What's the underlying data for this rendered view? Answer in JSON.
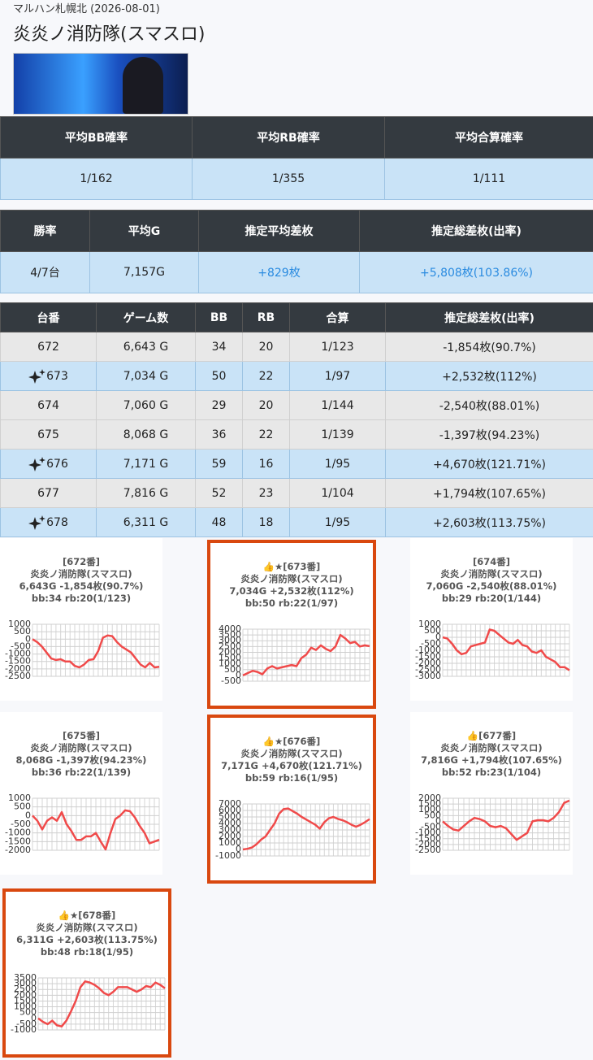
{
  "header": {
    "store": "マルハン札幌北 (2026-08-01)",
    "title": "炎炎ノ消防隊(スマスロ)"
  },
  "summary1": {
    "headers": [
      "平均BB確率",
      "平均RB確率",
      "平均合算確率"
    ],
    "row": [
      "1/162",
      "1/355",
      "1/111"
    ]
  },
  "summary2": {
    "headers": [
      "勝率",
      "平均G",
      "推定平均差枚",
      "推定総差枚(出率)"
    ],
    "row": [
      "4/7台",
      "7,157G",
      "+829枚",
      "+5,808枚(103.86%)"
    ]
  },
  "machines": {
    "headers": [
      "台番",
      "ゲーム数",
      "BB",
      "RB",
      "合算",
      "推定総差枚(出率)"
    ],
    "rows": [
      {
        "cells": [
          "672",
          "6,643 G",
          "34",
          "20",
          "1/123",
          "-1,854枚(90.7%)"
        ],
        "highlight": false
      },
      {
        "cells": [
          "673",
          "7,034 G",
          "50",
          "22",
          "1/97",
          "+2,532枚(112%)"
        ],
        "highlight": true
      },
      {
        "cells": [
          "674",
          "7,060 G",
          "29",
          "20",
          "1/144",
          "-2,540枚(88.01%)"
        ],
        "highlight": false
      },
      {
        "cells": [
          "675",
          "8,068 G",
          "36",
          "22",
          "1/139",
          "-1,397枚(94.23%)"
        ],
        "highlight": false
      },
      {
        "cells": [
          "676",
          "7,171 G",
          "59",
          "16",
          "1/95",
          "+4,670枚(121.71%)"
        ],
        "highlight": true
      },
      {
        "cells": [
          "677",
          "7,816 G",
          "52",
          "23",
          "1/104",
          "+1,794枚(107.65%)"
        ],
        "highlight": false
      },
      {
        "cells": [
          "678",
          "6,311 G",
          "48",
          "18",
          "1/95",
          "+2,603枚(113.75%)"
        ],
        "highlight": true
      }
    ]
  },
  "chart_data": [
    {
      "type": "line",
      "highlight": false,
      "color": "#f04a4a",
      "title_lines": [
        "[672番]",
        "炎炎ノ消防隊(スマスロ)",
        "6,643G -1,854枚(90.7%)",
        "bb:34 rb:20(1/123)"
      ],
      "ylim": [
        -2500,
        1000
      ],
      "yticks": [
        1000,
        500,
        0,
        -500,
        -1000,
        -1500,
        -2000,
        -2500
      ],
      "values": [
        0,
        -200,
        -500,
        -900,
        -1300,
        -1400,
        -1350,
        -1500,
        -1500,
        -1800,
        -1900,
        -1700,
        -1400,
        -1350,
        -800,
        100,
        250,
        200,
        -200,
        -500,
        -700,
        -900,
        -1300,
        -1700,
        -1900,
        -1600,
        -1900,
        -1854
      ]
    },
    {
      "type": "line",
      "highlight": true,
      "color": "#f04a4a",
      "title_lines": [
        "👍★[673番]",
        "炎炎ノ消防隊(スマスロ)",
        "7,034G +2,532枚(112%)",
        "bb:50 rb:22(1/97)"
      ],
      "ylim": [
        -500,
        4000
      ],
      "yticks": [
        4000,
        3500,
        3000,
        2500,
        2000,
        1500,
        1000,
        500,
        0,
        -500
      ],
      "values": [
        0,
        200,
        400,
        300,
        100,
        600,
        800,
        600,
        700,
        800,
        900,
        800,
        1500,
        1800,
        2400,
        2200,
        2600,
        2300,
        2100,
        2500,
        3500,
        3200,
        2800,
        2900,
        2500,
        2600,
        2532
      ]
    },
    {
      "type": "line",
      "highlight": false,
      "color": "#f04a4a",
      "title_lines": [
        "[674番]",
        "炎炎ノ消防隊(スマスロ)",
        "7,060G -2,540枚(88.01%)",
        "bb:29 rb:20(1/144)"
      ],
      "ylim": [
        -3000,
        1000
      ],
      "yticks": [
        1000,
        500,
        0,
        -500,
        -1000,
        -1500,
        -2000,
        -2500,
        -3000
      ],
      "values": [
        0,
        -100,
        -500,
        -1000,
        -1300,
        -1200,
        -700,
        -600,
        -500,
        -400,
        600,
        500,
        200,
        -100,
        -400,
        -500,
        -200,
        -600,
        -700,
        -1100,
        -1200,
        -1000,
        -1500,
        -1700,
        -1900,
        -2300,
        -2300,
        -2540
      ]
    },
    {
      "type": "line",
      "highlight": false,
      "color": "#f04a4a",
      "title_lines": [
        "[675番]",
        "炎炎ノ消防隊(スマスロ)",
        "8,068G -1,397枚(94.23%)",
        "bb:36 rb:22(1/139)"
      ],
      "ylim": [
        -2000,
        1000
      ],
      "yticks": [
        1000,
        500,
        0,
        -500,
        -1000,
        -1500,
        -2000
      ],
      "values": [
        0,
        -300,
        -800,
        -300,
        -100,
        -300,
        200,
        -500,
        -900,
        -1400,
        -1400,
        -1200,
        -1200,
        -1000,
        -1500,
        -1950,
        -1000,
        -200,
        0,
        300,
        250,
        -100,
        -600,
        -1000,
        -1600,
        -1500,
        -1397
      ]
    },
    {
      "type": "line",
      "highlight": true,
      "color": "#f04a4a",
      "title_lines": [
        "👍★[676番]",
        "炎炎ノ消防隊(スマスロ)",
        "7,171G +4,670枚(121.71%)",
        "bb:59 rb:16(1/95)"
      ],
      "ylim": [
        -1000,
        7000
      ],
      "yticks": [
        7000,
        6000,
        5000,
        4000,
        3000,
        2000,
        1000,
        0,
        -1000
      ],
      "values": [
        0,
        100,
        300,
        800,
        1500,
        2000,
        3000,
        4000,
        5500,
        6200,
        6300,
        5900,
        5500,
        5000,
        4600,
        4200,
        3800,
        3200,
        4200,
        4800,
        5000,
        4700,
        4500,
        4200,
        3800,
        3500,
        3800,
        4200,
        4670
      ]
    },
    {
      "type": "line",
      "highlight": false,
      "color": "#f04a4a",
      "title_lines": [
        "👍[677番]",
        "炎炎ノ消防隊(スマスロ)",
        "7,816G +1,794枚(107.65%)",
        "bb:52 rb:23(1/104)"
      ],
      "ylim": [
        -2500,
        2000
      ],
      "yticks": [
        2000,
        1500,
        1000,
        500,
        0,
        -500,
        -1000,
        -1500,
        -2000,
        -2500
      ],
      "values": [
        0,
        -400,
        -700,
        -800,
        -400,
        0,
        300,
        200,
        0,
        -400,
        -500,
        -400,
        -600,
        -1100,
        -1600,
        -1300,
        -1000,
        0,
        100,
        100,
        0,
        300,
        800,
        1600,
        1794
      ]
    },
    {
      "type": "line",
      "highlight": true,
      "color": "#f04a4a",
      "title_lines": [
        "👍★[678番]",
        "炎炎ノ消防隊(スマスロ)",
        "6,311G +2,603枚(113.75%)",
        "bb:48 rb:18(1/95)"
      ],
      "ylim": [
        -1000,
        3500
      ],
      "yticks": [
        3500,
        3000,
        2500,
        2000,
        1500,
        1000,
        500,
        0,
        -500,
        -1000
      ],
      "values": [
        0,
        -300,
        -500,
        -200,
        -600,
        -700,
        -200,
        600,
        1500,
        2700,
        3200,
        3100,
        2900,
        2600,
        2200,
        2000,
        2300,
        2700,
        2700,
        2700,
        2500,
        2300,
        2500,
        2800,
        2700,
        3100,
        2900,
        2603
      ]
    }
  ]
}
